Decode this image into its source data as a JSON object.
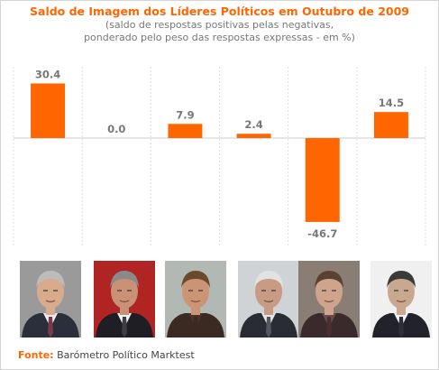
{
  "title": "Saldo de Imagem dos Líderes Políticos em Outubro de 2009",
  "subtitle_lines": [
    "(saldo de respostas positivas pelas negativas,",
    "ponderado pelo peso das respostas expressas - em %)"
  ],
  "colors": {
    "bar": "#ff6600",
    "title": "#ff6600",
    "label": "#777777",
    "grid": "#dddddd"
  },
  "chart_data": {
    "type": "bar",
    "categories": [
      "",
      "",
      "",
      "",
      "",
      ""
    ],
    "values": [
      30.4,
      0.0,
      7.9,
      2.4,
      -46.7,
      14.5
    ],
    "value_labels": [
      "30.4",
      "0.0",
      "7.9",
      "2.4",
      "-46.7",
      "14.5"
    ],
    "title": "Saldo de Imagem dos Líderes Políticos em Outubro de 2009",
    "xlabel": "",
    "ylabel": "",
    "ylim": [
      -60,
      45
    ],
    "grid": "vertical dotted separators"
  },
  "photos": [
    {
      "name": "photo-1",
      "bg": "#9a9a9a",
      "skin": "#d8ab8d",
      "hair": "#bcbcbc",
      "suit": "#2a2f3a",
      "tie": "#7b3a4a",
      "shirt": "#eeeeee"
    },
    {
      "name": "photo-2",
      "bg": "#b02424",
      "skin": "#c99176",
      "hair": "#8a8a8a",
      "suit": "#1e1e24",
      "tie": "#3d3d45",
      "shirt": "#f3f3f3"
    },
    {
      "name": "photo-3",
      "bg": "#b2b8b4",
      "skin": "#cb9475",
      "hair": "#6a4a2a",
      "suit": "#3a2a22",
      "tie": "#3a2a22",
      "shirt": "#4a3428"
    },
    {
      "name": "photo-4",
      "bg": "#cfd3d6",
      "skin": "#c79b84",
      "hair": "#e2e2e2",
      "suit": "#2a2c33",
      "tie": "#55575e",
      "shirt": "#e6e6e6"
    },
    {
      "name": "photo-5",
      "bg": "#8a7e74",
      "skin": "#cfa48d",
      "hair": "#5a4232",
      "suit": "#3a2a2c",
      "tie": "#4a2e30",
      "shirt": "#6a4a4a"
    },
    {
      "name": "photo-6",
      "bg": "#f0f0f0",
      "skin": "#c8a88e",
      "hair": "#3a3a3a",
      "suit": "#22232a",
      "tie": "#2e2f36",
      "shirt": "#f5f5f5"
    }
  ],
  "source": {
    "label": "Fonte:",
    "text": "Barómetro Político Marktest"
  }
}
